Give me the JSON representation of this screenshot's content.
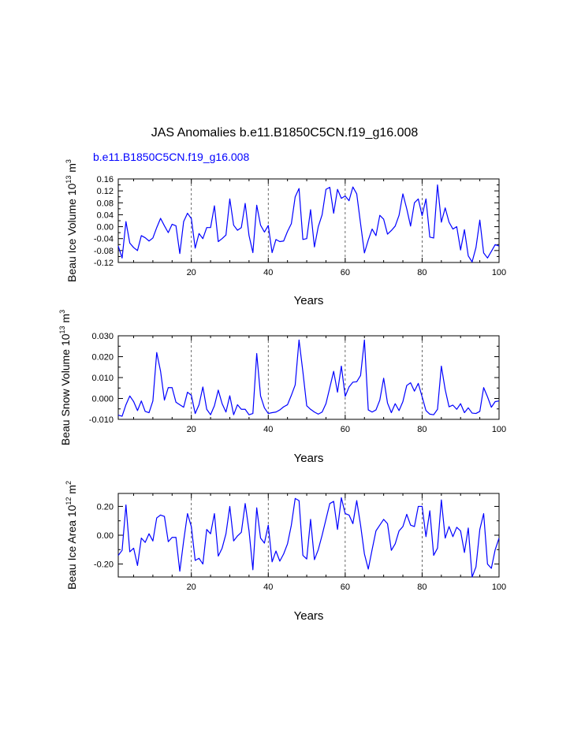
{
  "title": "JAS Anomalies b.e11.B1850C5CN.f19_g16.008",
  "subtitle": "b.e11.B1850C5CN.f19_g16.008",
  "series_color": "#0000ff",
  "chart_data": [
    {
      "type": "line",
      "title": "",
      "xlabel": "Years",
      "ylabel_main": "Beau Ice Volume 10",
      "ylabel_exp": "13",
      "ylabel_unit": " m",
      "ylabel_unit_exp": "3",
      "xlim": [
        1,
        100
      ],
      "ylim": [
        -0.12,
        0.16
      ],
      "xticks": [
        20,
        40,
        60,
        80,
        100
      ],
      "yticks": [
        -0.12,
        -0.08,
        -0.04,
        0.0,
        0.04,
        0.08,
        0.12,
        0.16
      ],
      "ytick_labels": [
        "-0.12",
        "-0.08",
        "-0.04",
        "0.00",
        "0.04",
        "0.08",
        "0.12",
        "0.16"
      ],
      "vlines": [
        20,
        40,
        60,
        80
      ],
      "series": [
        {
          "name": "b.e11.B1850C5CN.f19_g16.008",
          "values": [
            -0.065,
            -0.105,
            0.017,
            -0.055,
            -0.07,
            -0.08,
            -0.03,
            -0.037,
            -0.048,
            -0.038,
            -0.003,
            0.028,
            0.003,
            -0.02,
            0.008,
            0.003,
            -0.09,
            0.017,
            0.045,
            0.027,
            -0.072,
            -0.023,
            -0.04,
            -0.003,
            -0.003,
            0.07,
            -0.05,
            -0.04,
            -0.028,
            0.093,
            0.005,
            -0.012,
            -0.003,
            0.078,
            -0.03,
            -0.087,
            0.072,
            0.005,
            -0.018,
            0.004,
            -0.087,
            -0.043,
            -0.05,
            -0.048,
            -0.016,
            0.01,
            0.1,
            0.128,
            -0.043,
            -0.04,
            0.057,
            -0.068,
            0.0,
            0.04,
            0.125,
            0.132,
            0.045,
            0.125,
            0.095,
            0.103,
            0.087,
            0.133,
            0.11,
            0.01,
            -0.088,
            -0.045,
            -0.008,
            -0.03,
            0.038,
            0.025,
            -0.025,
            -0.013,
            0.002,
            0.038,
            0.11,
            0.06,
            0.002,
            0.08,
            0.093,
            0.037,
            0.093,
            -0.035,
            -0.038,
            0.14,
            0.015,
            0.063,
            0.015,
            -0.008,
            0.0,
            -0.078,
            -0.01,
            -0.098,
            -0.118,
            -0.07,
            0.022,
            -0.088,
            -0.105,
            -0.083,
            -0.06,
            -0.065
          ]
        }
      ]
    },
    {
      "type": "line",
      "title": "",
      "xlabel": "Years",
      "ylabel_main": "Beau Snow Volume 10",
      "ylabel_exp": "13",
      "ylabel_unit": " m",
      "ylabel_unit_exp": "3",
      "xlim": [
        1,
        100
      ],
      "ylim": [
        -0.01,
        0.03
      ],
      "xticks": [
        20,
        40,
        60,
        80,
        100
      ],
      "yticks": [
        -0.01,
        0.0,
        0.01,
        0.02,
        0.03
      ],
      "ytick_labels": [
        "-0.010",
        "0.000",
        "0.010",
        "0.020",
        "0.030"
      ],
      "vlines": [
        20,
        40,
        60,
        80
      ],
      "series": [
        {
          "name": "b.e11.B1850C5CN.f19_g16.008",
          "values": [
            -0.008,
            -0.0085,
            -0.003,
            0.0012,
            -0.0015,
            -0.0058,
            -0.0012,
            -0.0062,
            -0.0068,
            -0.0012,
            0.022,
            0.013,
            -0.0008,
            0.0052,
            0.0052,
            -0.0018,
            -0.003,
            -0.0042,
            0.003,
            0.0015,
            -0.0072,
            -0.003,
            0.0055,
            -0.0052,
            -0.0078,
            -0.0035,
            0.004,
            -0.0025,
            -0.0065,
            0.0013,
            -0.0078,
            -0.003,
            -0.0052,
            -0.0052,
            -0.0078,
            -0.0072,
            0.0215,
            0.0012,
            -0.0045,
            -0.0072,
            -0.0068,
            -0.0065,
            -0.0055,
            -0.004,
            -0.003,
            0.0015,
            0.0065,
            0.028,
            0.0128,
            -0.0035,
            -0.0052,
            -0.0065,
            -0.0075,
            -0.0065,
            -0.0025,
            0.0052,
            0.013,
            0.003,
            0.0155,
            0.001,
            0.0055,
            0.0078,
            0.008,
            0.011,
            0.028,
            -0.0055,
            -0.0065,
            -0.0055,
            -0.0008,
            0.0097,
            -0.0022,
            -0.0068,
            -0.0025,
            -0.0058,
            -0.0015,
            0.0062,
            0.0075,
            0.0035,
            0.0072,
            0.0008,
            -0.0058,
            -0.0075,
            -0.0078,
            -0.0052,
            0.0155,
            0.0042,
            -0.004,
            -0.0032,
            -0.0052,
            -0.0025,
            -0.0068,
            -0.0045,
            -0.007,
            -0.0072,
            -0.0062,
            0.0052,
            0.0008,
            -0.0042,
            -0.0015,
            -0.0012
          ]
        }
      ]
    },
    {
      "type": "line",
      "title": "",
      "xlabel": "Years",
      "ylabel_main": "Beau Ice Area 10",
      "ylabel_exp": "12",
      "ylabel_unit": " m",
      "ylabel_unit_exp": "2",
      "xlim": [
        1,
        100
      ],
      "ylim": [
        -0.29,
        0.29
      ],
      "xticks": [
        20,
        40,
        60,
        80,
        100
      ],
      "yticks": [
        -0.2,
        0.0,
        0.2
      ],
      "ytick_labels": [
        "-0.20",
        "0.00",
        "0.20"
      ],
      "vlines": [
        20,
        40,
        60,
        80
      ],
      "series": [
        {
          "name": "b.e11.B1850C5CN.f19_g16.008",
          "values": [
            -0.14,
            -0.105,
            0.21,
            -0.115,
            -0.09,
            -0.21,
            -0.02,
            -0.05,
            0.01,
            -0.04,
            0.12,
            0.14,
            0.13,
            -0.045,
            -0.015,
            -0.015,
            -0.25,
            -0.04,
            0.15,
            0.06,
            -0.175,
            -0.16,
            -0.2,
            0.04,
            0.01,
            0.15,
            -0.145,
            -0.09,
            0.01,
            0.2,
            -0.04,
            -0.005,
            0.02,
            0.22,
            0.03,
            -0.24,
            0.19,
            -0.02,
            -0.055,
            0.07,
            -0.185,
            -0.11,
            -0.18,
            -0.13,
            -0.06,
            0.07,
            0.255,
            0.24,
            -0.14,
            -0.165,
            0.11,
            -0.17,
            -0.1,
            0.0,
            0.11,
            0.22,
            0.235,
            0.04,
            0.26,
            0.15,
            0.14,
            0.08,
            0.24,
            0.07,
            -0.13,
            -0.235,
            -0.1,
            0.03,
            0.07,
            0.11,
            0.08,
            -0.105,
            -0.06,
            0.03,
            0.06,
            0.145,
            0.07,
            0.06,
            0.2,
            0.2,
            -0.01,
            0.17,
            -0.14,
            -0.09,
            0.245,
            -0.02,
            0.06,
            -0.01,
            0.055,
            0.03,
            -0.12,
            0.05,
            -0.29,
            -0.22,
            0.04,
            0.15,
            -0.2,
            -0.23,
            -0.1,
            -0.02
          ]
        }
      ]
    }
  ]
}
